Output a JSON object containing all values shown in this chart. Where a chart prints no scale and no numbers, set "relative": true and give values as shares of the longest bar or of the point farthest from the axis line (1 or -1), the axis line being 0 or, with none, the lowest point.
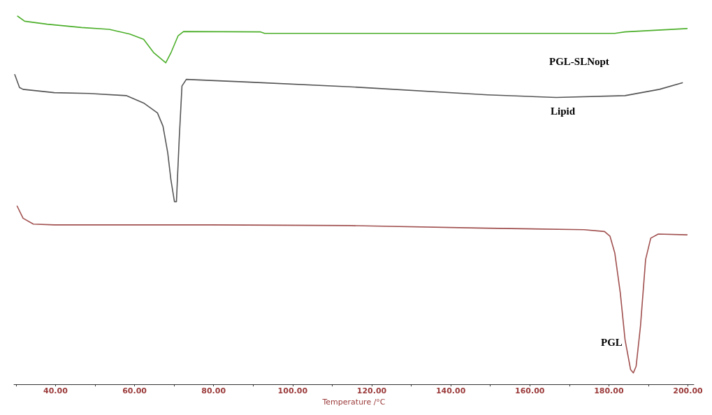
{
  "chart_data": {
    "type": "line",
    "relative": true,
    "xlabel": "Temperature /°C",
    "xlim": [
      29.5,
      201.5
    ],
    "xticks": [
      {
        "value": 30,
        "label": null
      },
      {
        "value": 40,
        "label": "40.00"
      },
      {
        "value": 50,
        "label": null
      },
      {
        "value": 60,
        "label": "60.00"
      },
      {
        "value": 70,
        "label": null
      },
      {
        "value": 80,
        "label": "80.00"
      },
      {
        "value": 90,
        "label": null
      },
      {
        "value": 100,
        "label": "100.00"
      },
      {
        "value": 110,
        "label": null
      },
      {
        "value": 120,
        "label": "120.00"
      },
      {
        "value": 130,
        "label": null
      },
      {
        "value": 140,
        "label": "140.00"
      },
      {
        "value": 150,
        "label": null
      },
      {
        "value": 160,
        "label": "160.00"
      },
      {
        "value": 170,
        "label": null
      },
      {
        "value": 180,
        "label": "180.00"
      },
      {
        "value": 190,
        "label": null
      },
      {
        "value": 200,
        "label": "200.00"
      }
    ],
    "grid": false,
    "legend": false,
    "marker": "none",
    "line_style": "solid",
    "series": [
      {
        "name": "PGL-SLNopt",
        "color": "#4caf2a",
        "x": [
          30.4,
          32.2,
          37.9,
          46.6,
          53.6,
          58.8,
          62.3,
          64.9,
          67.9,
          69.2,
          71.0,
          72.4,
          91.9,
          92.9,
          181.5,
          184.1,
          199.8
        ],
        "values": [
          1.0,
          0.986,
          0.978,
          0.969,
          0.964,
          0.951,
          0.937,
          0.9,
          0.873,
          0.9,
          0.946,
          0.958,
          0.957,
          0.953,
          0.953,
          0.957,
          0.966
        ]
      },
      {
        "name": "Lipid",
        "color": "#555555",
        "x": [
          29.7,
          30.9,
          31.8,
          39.7,
          48.4,
          57.9,
          62.3,
          65.8,
          67.2,
          68.4,
          69.2,
          70.1,
          70.6,
          71.3,
          72.0,
          73.1,
          88.4,
          114.5,
          149.3,
          166.7,
          184.1,
          192.8,
          198.6
        ],
        "values": [
          0.841,
          0.806,
          0.801,
          0.792,
          0.79,
          0.784,
          0.764,
          0.737,
          0.701,
          0.629,
          0.556,
          0.496,
          0.496,
          0.665,
          0.81,
          0.828,
          0.821,
          0.808,
          0.786,
          0.779,
          0.784,
          0.801,
          0.819
        ]
      },
      {
        "name": "PGL",
        "color": "#a0504f",
        "x": [
          30.3,
          31.8,
          34.4,
          39.7,
          79.7,
          114.5,
          149.3,
          173.7,
          178.9,
          180.3,
          181.5,
          182.9,
          184.1,
          185.5,
          186.2,
          186.9,
          188.0,
          189.3,
          190.6,
          192.5,
          199.8
        ],
        "values": [
          0.484,
          0.451,
          0.435,
          0.433,
          0.433,
          0.431,
          0.424,
          0.42,
          0.415,
          0.402,
          0.357,
          0.248,
          0.121,
          0.04,
          0.031,
          0.049,
          0.158,
          0.339,
          0.397,
          0.408,
          0.406
        ]
      }
    ]
  }
}
